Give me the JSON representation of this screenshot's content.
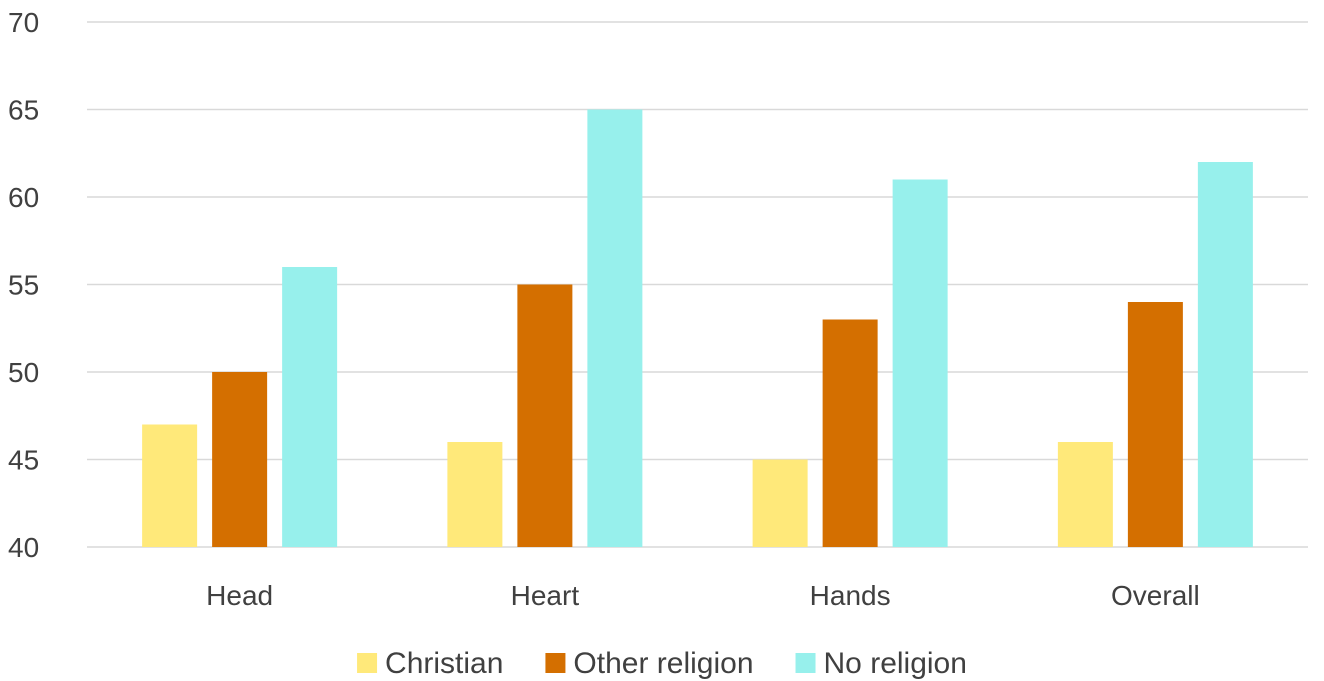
{
  "chart_data": {
    "type": "bar",
    "title": "",
    "xlabel": "",
    "ylabel": "",
    "categories": [
      "Head",
      "Heart",
      "Hands",
      "Overall"
    ],
    "series": [
      {
        "name": "Christian",
        "values": [
          47,
          46,
          45,
          46
        ],
        "color": "#FFE97A"
      },
      {
        "name": "Other religion",
        "values": [
          50,
          55,
          53,
          54
        ],
        "color": "#D46F00"
      },
      {
        "name": "No religion",
        "values": [
          56,
          65,
          61,
          62
        ],
        "color": "#97F0EC"
      }
    ],
    "ylim": [
      40,
      70
    ],
    "yticks": [
      40,
      45,
      50,
      55,
      60,
      65,
      70
    ],
    "grid": true,
    "gridline_color": "#D9D9D9",
    "legend_position": "bottom"
  }
}
